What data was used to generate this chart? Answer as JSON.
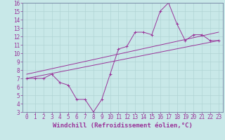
{
  "background_color": "#c8e8e8",
  "grid_color": "#b0d4d4",
  "line_color": "#993399",
  "xlabel": "Windchill (Refroidissement éolien,°C)",
  "xlabel_fontsize": 6.5,
  "tick_fontsize": 5.5,
  "xlim": [
    -0.5,
    23.5
  ],
  "ylim": [
    3,
    16
  ],
  "yticks": [
    3,
    4,
    5,
    6,
    7,
    8,
    9,
    10,
    11,
    12,
    13,
    14,
    15,
    16
  ],
  "xticks": [
    0,
    1,
    2,
    3,
    4,
    5,
    6,
    7,
    8,
    9,
    10,
    11,
    12,
    13,
    14,
    15,
    16,
    17,
    18,
    19,
    20,
    21,
    22,
    23
  ],
  "line1": [
    [
      0,
      7
    ],
    [
      1,
      7
    ],
    [
      2,
      7
    ],
    [
      3,
      7.5
    ],
    [
      4,
      6.5
    ],
    [
      5,
      6.2
    ],
    [
      6,
      4.5
    ],
    [
      7,
      4.5
    ],
    [
      8,
      3
    ],
    [
      9,
      4.5
    ],
    [
      10,
      7.5
    ],
    [
      11,
      10.5
    ],
    [
      12,
      10.8
    ],
    [
      13,
      12.5
    ],
    [
      14,
      12.5
    ],
    [
      15,
      12.2
    ],
    [
      16,
      15
    ],
    [
      17,
      16
    ],
    [
      18,
      13.5
    ],
    [
      19,
      11.5
    ],
    [
      20,
      12.2
    ],
    [
      21,
      12.2
    ],
    [
      22,
      11.5
    ],
    [
      23,
      11.5
    ]
  ],
  "line2_regression": [
    [
      0,
      7.0
    ],
    [
      23,
      11.5
    ]
  ],
  "line3_regression": [
    [
      0,
      7.5
    ],
    [
      23,
      12.5
    ]
  ]
}
